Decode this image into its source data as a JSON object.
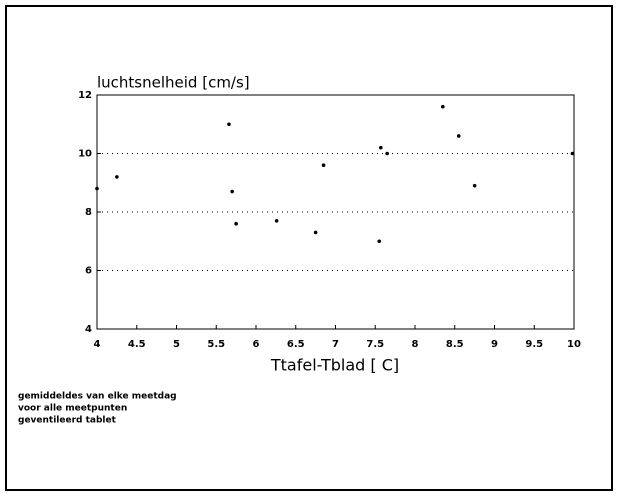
{
  "chart_data": {
    "type": "scatter",
    "ylabel": "luchtsnelheid [cm/s]",
    "xlabel": "Ttafel-Tblad [ C]",
    "notes": [
      "gemiddeldes van elke meetdag",
      "voor alle meetpunten",
      "geventileerd tablet"
    ],
    "x": [
      4.0,
      4.25,
      5.66,
      5.7,
      5.75,
      6.26,
      6.75,
      6.85,
      7.55,
      7.57,
      7.65,
      8.35,
      8.55,
      8.75,
      9.98
    ],
    "values": [
      8.8,
      9.2,
      11.0,
      8.7,
      7.6,
      7.7,
      7.3,
      9.6,
      7.0,
      10.2,
      10.0,
      11.6,
      10.6,
      8.9,
      10.0
    ],
    "color": "#000000",
    "xlim": [
      4,
      10
    ],
    "ylim": [
      4,
      12
    ],
    "xticks": [
      4,
      4.5,
      5,
      5.5,
      6,
      6.5,
      7,
      7.5,
      8,
      8.5,
      9,
      9.5,
      10
    ],
    "yticks": [
      4,
      6,
      8,
      10,
      12
    ],
    "grid": true
  }
}
